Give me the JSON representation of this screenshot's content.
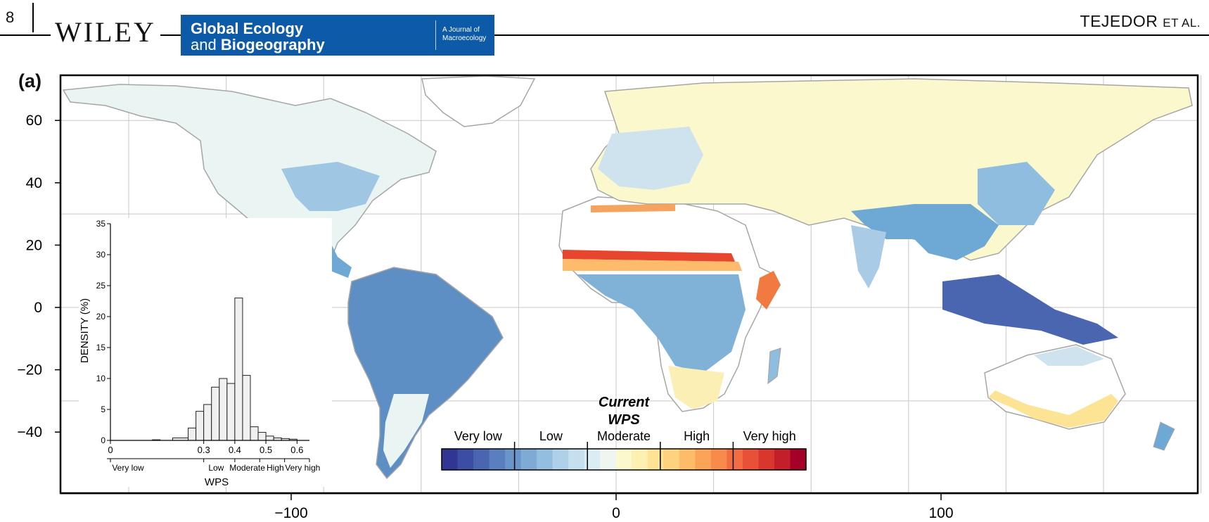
{
  "header": {
    "page_number": "8",
    "publisher": "WILEY",
    "journal_line1": "Global Ecology",
    "journal_line2_prefix": "and ",
    "journal_line2_bold": "Biogeography",
    "journal_tagline_1": "A Journal of",
    "journal_tagline_2": "Macroecology",
    "authors": "TEJEDOR",
    "authors_suffix": "ET AL."
  },
  "figure": {
    "panel_label": "(a)",
    "x_ticks": [
      "−100",
      "0",
      "100"
    ],
    "y_ticks": [
      "60",
      "40",
      "20",
      "0",
      "−20",
      "−40"
    ],
    "colors": {
      "very_low": "#2f3f98",
      "low": "#6ea8d4",
      "moderate_low": "#d8ecf2",
      "moderate_high": "#fbf1b8",
      "high": "#f6a360",
      "very_high": "#a50026",
      "land_outline": "#a6a6a6",
      "grid": "#c8c8c8"
    },
    "legend": {
      "title_line1": "Current",
      "title_line2": "WPS",
      "classes": [
        "Very low",
        "Low",
        "Moderate",
        "High",
        "Very high"
      ],
      "palette": [
        "#313695",
        "#3c4ea3",
        "#4a66b1",
        "#5a7ebf",
        "#6a95cb",
        "#7eaad5",
        "#94bedf",
        "#aed0e8",
        "#c6dfef",
        "#dcecf3",
        "#eef6ef",
        "#fbf8cd",
        "#fdf0b0",
        "#fee394",
        "#fed27e",
        "#fdbc6a",
        "#fca35a",
        "#f88a4c",
        "#f26d42",
        "#e85138",
        "#d9362d",
        "#c31f2a",
        "#a50026"
      ]
    },
    "inset": {
      "ylabel": "DENSITY (%)",
      "xlabel": "WPS",
      "y_ticks": [
        "0",
        "5",
        "10",
        "15",
        "20",
        "25",
        "30",
        "35"
      ],
      "x_ticks": [
        "0",
        "0.3",
        "0.4",
        "0.5",
        "0.6"
      ],
      "classes": [
        "Very low",
        "Low",
        "Moderate",
        "High",
        "Very high"
      ]
    }
  },
  "chart_data": {
    "type": "bar",
    "title": "",
    "xlabel": "WPS",
    "ylabel": "DENSITY (%)",
    "ylim": [
      0,
      35
    ],
    "bins_wps_lower_edge": [
      0.0,
      0.2,
      0.25,
      0.275,
      0.3,
      0.325,
      0.35,
      0.375,
      0.4,
      0.425,
      0.45,
      0.475,
      0.5,
      0.525,
      0.55,
      0.575
    ],
    "values": [
      0.1,
      0.4,
      2.0,
      4.7,
      5.8,
      8.6,
      10.0,
      9.2,
      23.0,
      10.5,
      2.2,
      1.3,
      0.7,
      0.4,
      0.3,
      0.2
    ],
    "grid": false
  }
}
